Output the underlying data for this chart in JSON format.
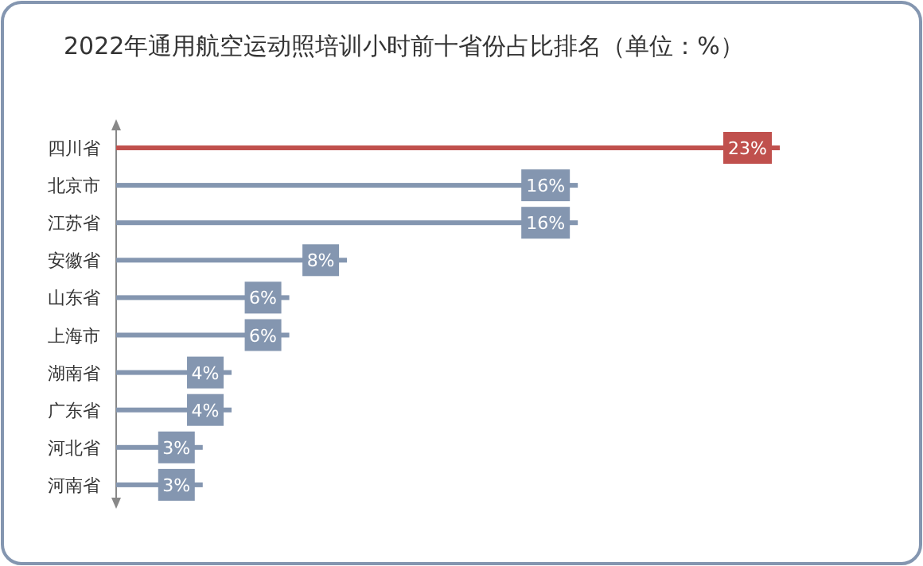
{
  "chart_data": {
    "type": "bar",
    "orientation": "horizontal",
    "title": "2022年通用航空运动照培训小时前十省份占比排名（单位：%）",
    "categories": [
      "四川省",
      "北京市",
      "江苏省",
      "安徽省",
      "山东省",
      "上海市",
      "湖南省",
      "广东省",
      "河北省",
      "河南省"
    ],
    "values": [
      23,
      16,
      16,
      8,
      6,
      6,
      4,
      4,
      3,
      3
    ],
    "value_labels": [
      "23%",
      "16%",
      "16%",
      "8%",
      "6%",
      "6%",
      "4%",
      "4%",
      "3%",
      "3%"
    ],
    "colors": [
      "#c0504d",
      "#8496b0",
      "#8496b0",
      "#8496b0",
      "#8496b0",
      "#8496b0",
      "#8496b0",
      "#8496b0",
      "#8496b0",
      "#8496b0"
    ]
  }
}
